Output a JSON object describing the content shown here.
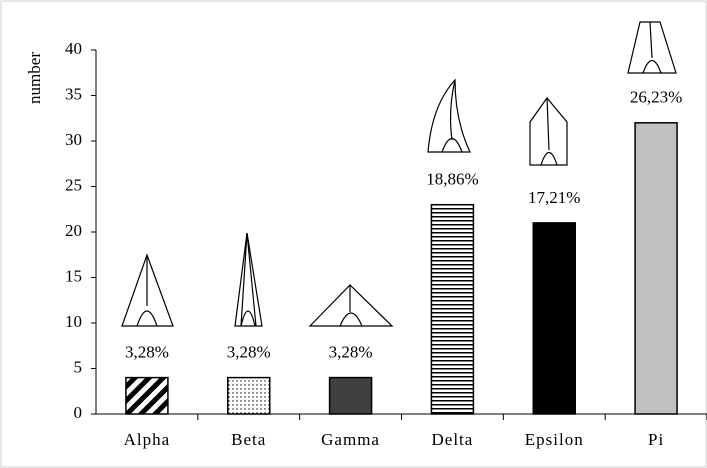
{
  "chart_data": {
    "type": "bar",
    "y_label": "number",
    "categories": [
      "Alpha",
      "Beta",
      "Gamma",
      "Delta",
      "Epsilon",
      "Pi"
    ],
    "values": [
      4,
      4,
      4,
      23,
      21,
      32
    ],
    "annotations": [
      "3,28%",
      "3,28%",
      "3,28%",
      "18,86%",
      "17,21%",
      "26,23%"
    ],
    "fills": [
      "diagonal",
      "dots",
      "#404040",
      "horizontal",
      "#000000",
      "#c0c0c0"
    ],
    "ylim": [
      0,
      40
    ],
    "yticks": [
      0,
      5,
      10,
      15,
      20,
      25,
      30,
      35,
      40
    ],
    "grid": false
  }
}
